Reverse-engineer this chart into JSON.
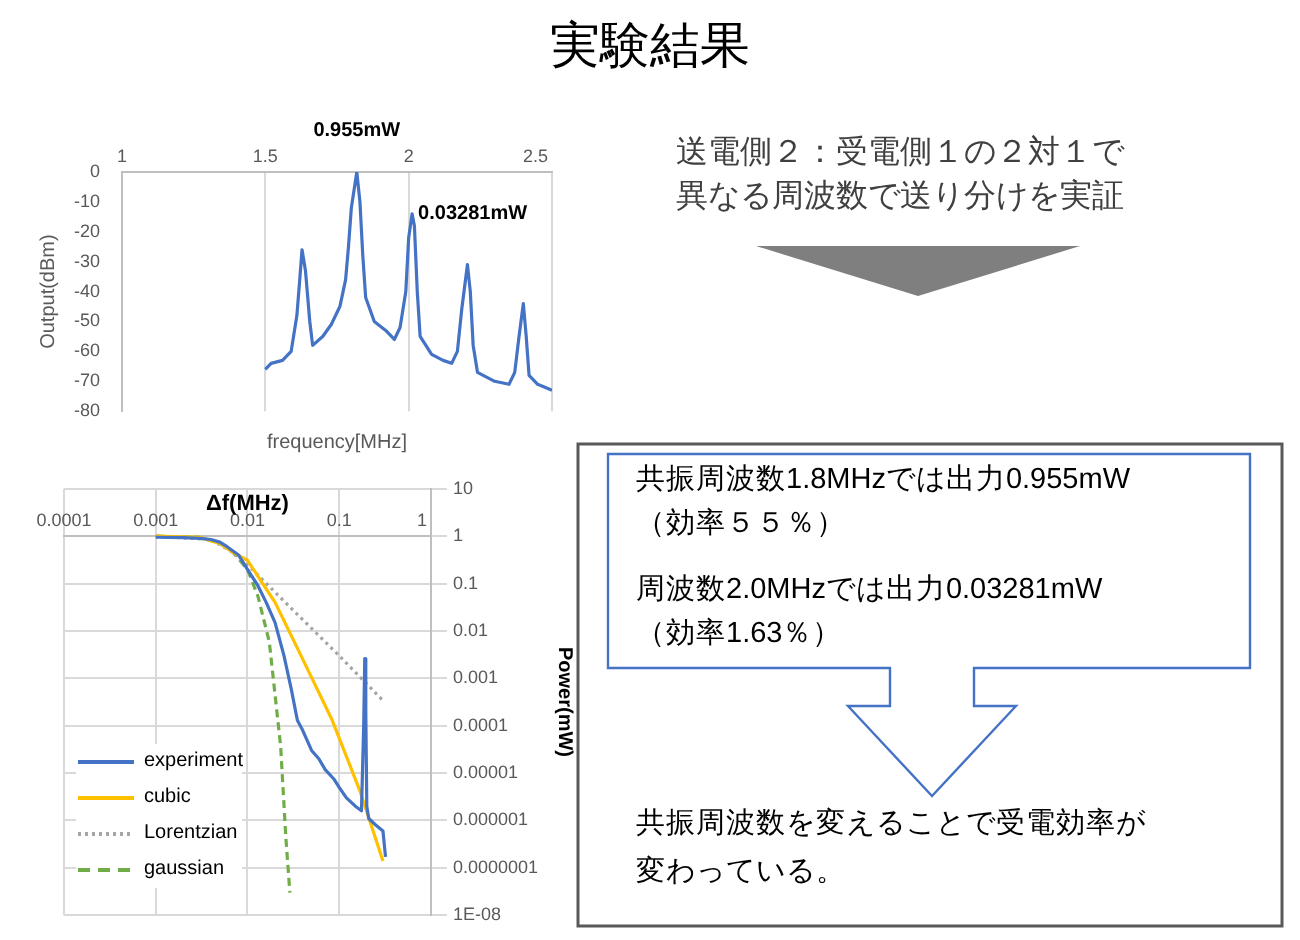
{
  "chart_data": [
    {
      "type": "line",
      "xlabel": "frequency[MHz]",
      "ylabel": "Output(dBm)",
      "xlim": [
        1,
        2.5
      ],
      "xticks": [
        1,
        1.5,
        2,
        2.5
      ],
      "ylim": [
        -80,
        0
      ],
      "yticks": [
        0,
        -10,
        -20,
        -30,
        -40,
        -50,
        -60,
        -70,
        -80
      ],
      "grid": "x",
      "color": "#4472c4",
      "x": [
        1.5,
        1.52,
        1.56,
        1.59,
        1.61,
        1.62,
        1.628,
        1.64,
        1.655,
        1.665,
        1.7,
        1.73,
        1.76,
        1.78,
        1.79,
        1.8,
        1.819,
        1.83,
        1.84,
        1.85,
        1.88,
        1.92,
        1.95,
        1.97,
        1.99,
        2.0,
        2.012,
        2.02,
        2.03,
        2.04,
        2.08,
        2.12,
        2.15,
        2.17,
        2.185,
        2.205,
        2.215,
        2.225,
        2.24,
        2.3,
        2.35,
        2.37,
        2.385,
        2.4,
        2.41,
        2.42,
        2.45,
        2.5
      ],
      "values": [
        -66,
        -64,
        -63,
        -60,
        -48,
        -36,
        -26,
        -33,
        -50,
        -58,
        -55,
        -51,
        -45,
        -36,
        -25,
        -12,
        0,
        -10,
        -28,
        -42,
        -50,
        -53,
        -56,
        -52,
        -40,
        -22,
        -14,
        -18,
        -40,
        -55,
        -61,
        -63,
        -64,
        -60,
        -46,
        -31,
        -40,
        -58,
        -67,
        -70,
        -71,
        -67,
        -55,
        -44,
        -55,
        -68,
        -71,
        -73
      ],
      "annotations": [
        {
          "text": "0.955mW",
          "x": 1.819,
          "y": 0
        },
        {
          "text": "0.03281mW",
          "x": 2.012,
          "y": -14
        }
      ]
    },
    {
      "type": "line",
      "xlabel": "Δf(MHz)",
      "ylabel": "Power(mW)",
      "log": "xy",
      "xlim": [
        0.0001,
        1
      ],
      "xticks": [
        0.0001,
        0.001,
        0.01,
        0.1,
        1
      ],
      "ylim": [
        1e-08,
        10
      ],
      "yticks": [
        10,
        1,
        0.1,
        0.01,
        0.001,
        0.0001,
        {
          "value": 1e-05,
          "label": "0.00001"
        },
        {
          "value": 1e-06,
          "label": "0.000001"
        },
        {
          "value": 1e-07,
          "label": "0.0000001"
        },
        {
          "value": 1e-08,
          "label": "1E-08"
        }
      ],
      "grid": true,
      "legend": "bottom left",
      "series": [
        {
          "name": "experiment",
          "color": "#4472c4",
          "line_style": "solid",
          "x": [
            0.001,
            0.002,
            0.003,
            0.004,
            0.005,
            0.006,
            0.008,
            0.01,
            0.013,
            0.016,
            0.02,
            0.025,
            0.03,
            0.035,
            0.04,
            0.05,
            0.06,
            0.07,
            0.087,
            0.1,
            0.12,
            0.15,
            0.175,
            0.185,
            0.19,
            0.195,
            0.2,
            0.21,
            0.25,
            0.3,
            0.32
          ],
          "values": [
            0.95,
            0.93,
            0.9,
            0.85,
            0.75,
            0.6,
            0.4,
            0.2,
            0.09,
            0.04,
            0.015,
            0.003,
            0.0006,
            0.00013,
            8e-05,
            3e-05,
            2e-05,
            1.2e-05,
            7.6e-06,
            5e-06,
            3e-06,
            2e-06,
            1.6e-06,
            0.0001,
            0.0026,
            0.0002,
            2e-06,
            1.1e-06,
            8e-07,
            6e-07,
            1.7e-07
          ]
        },
        {
          "name": "cubic",
          "color": "#ffc000",
          "line_style": "solid",
          "x": [
            0.001,
            0.003,
            0.005,
            0.007,
            0.01,
            0.02,
            0.041,
            0.084,
            0.17,
            0.3
          ],
          "values": [
            1,
            0.95,
            0.7,
            0.45,
            0.31,
            0.04,
            0.0023,
            0.00013,
            4e-06,
            1.4e-07
          ]
        },
        {
          "name": "Lorentzian",
          "color": "#a5a5a5",
          "line_style": "dotted",
          "x": [
            0.001,
            0.004,
            0.007,
            0.01,
            0.03,
            0.1,
            0.3
          ],
          "values": [
            1,
            0.85,
            0.45,
            0.25,
            0.03,
            0.003,
            0.00034
          ]
        },
        {
          "name": "gaussian",
          "color": "#70ad47",
          "line_style": "dashed",
          "x": [
            0.001,
            0.003,
            0.005,
            0.007,
            0.01,
            0.013,
            0.0173,
            0.023,
            0.0262,
            0.029
          ],
          "values": [
            1,
            0.95,
            0.7,
            0.45,
            0.2,
            0.054,
            0.0059,
            3.7e-05,
            4.4e-07,
            3e-08
          ]
        }
      ]
    },
    {
      "type": "other",
      "title": "実験結果",
      "annotations": [
        "送電側２：受電側１の２対１で",
        "異なる周波数で送り分けを実証",
        "共振周波数1.8MHzでは出力0.955mW",
        "（効率５５％）",
        "周波数2.0MHzでは出力0.03281mW",
        "（効率1.63％）",
        "共振周波数を変えることで受電効率が",
        "変わっている。"
      ]
    }
  ]
}
